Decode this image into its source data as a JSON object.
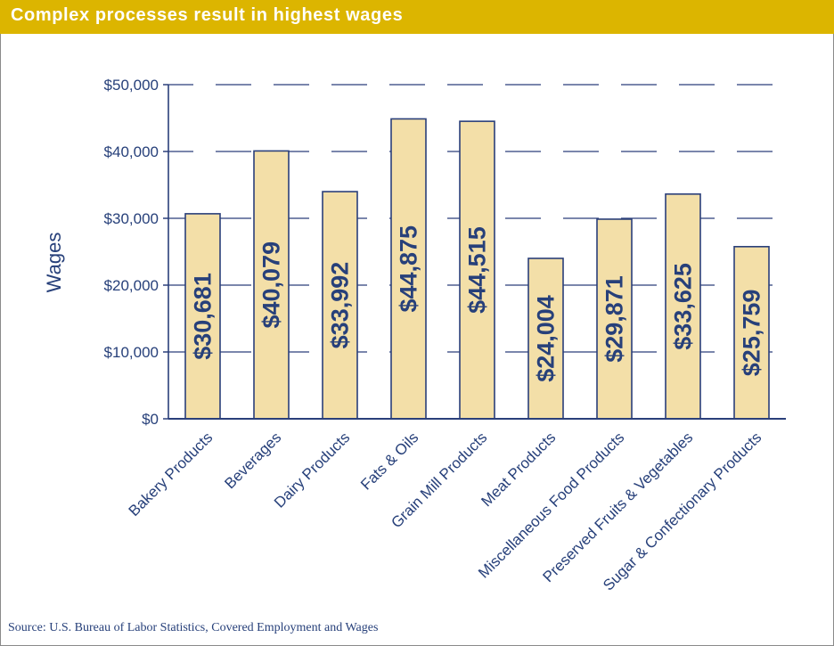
{
  "title": "Complex processes result in highest wages",
  "source": "Source: U.S. Bureau of Labor Statistics, Covered Employment and Wages",
  "colors": {
    "title_bar": "#dcb500",
    "bar_fill": "#f3dfa8",
    "bar_stroke": "#2a3f7a",
    "text": "#27407a",
    "grid": "#2a3f7a"
  },
  "chart_data": {
    "type": "bar",
    "title": "",
    "xlabel": "",
    "ylabel": "Wages",
    "ylim": [
      0,
      50000
    ],
    "yticks": [
      0,
      10000,
      20000,
      30000,
      40000,
      50000
    ],
    "ytick_labels": [
      "$0",
      "$10,000",
      "$20,000",
      "$30,000",
      "$40,000",
      "$50,000"
    ],
    "grid": "dashed horizontal",
    "categories": [
      "Bakery Products",
      "Beverages",
      "Dairy Products",
      "Fats & Oils",
      "Grain Mill Products",
      "Meat Products",
      "Miscellaneous Food Products",
      "Preserved Fruits & Vegetables",
      "Sugar & Confectionary Products"
    ],
    "values": [
      30681,
      40079,
      33992,
      44875,
      44515,
      24004,
      29871,
      33625,
      25759
    ],
    "data_labels": [
      "$30,681",
      "$40,079",
      "$33,992",
      "$44,875",
      "$44,515",
      "$24,004",
      "$29,871",
      "$33,625",
      "$25,759"
    ]
  }
}
